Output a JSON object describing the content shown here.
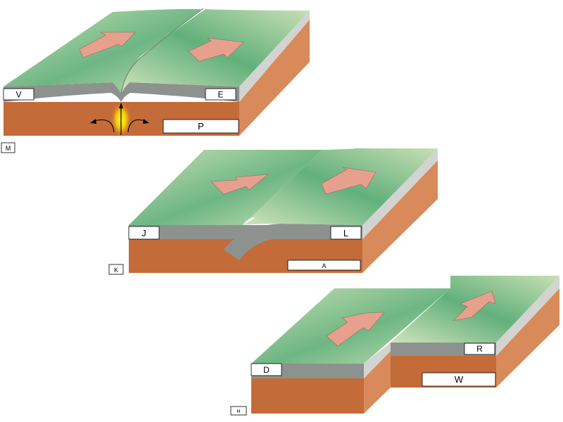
{
  "colors": {
    "surface_dark": "#5fb07a",
    "surface_light": "#c9e0b4",
    "crust": "#8e928e",
    "crust_edge": "#d2d4d2",
    "mantle": "#c46b3a",
    "mantle_edge": "#d98a5a",
    "arrow": "#e8a08e",
    "glow": "#f5d000"
  },
  "icons": [
    "divergence-arrow",
    "convergence-arrow",
    "transform-arrow",
    "magma-upwelling-arrow"
  ],
  "diagrams": {
    "divergent": {
      "corner_label": "M",
      "labels": {
        "left_crust": "V",
        "right_crust": "E",
        "mantle": "P"
      }
    },
    "convergent": {
      "corner_label": "K",
      "labels": {
        "left_crust": "J",
        "right_crust": "L",
        "mantle": "A"
      }
    },
    "transform": {
      "corner_label": "H",
      "labels": {
        "left_crust": "D",
        "right_crust": "R",
        "mantle": "W"
      }
    }
  }
}
